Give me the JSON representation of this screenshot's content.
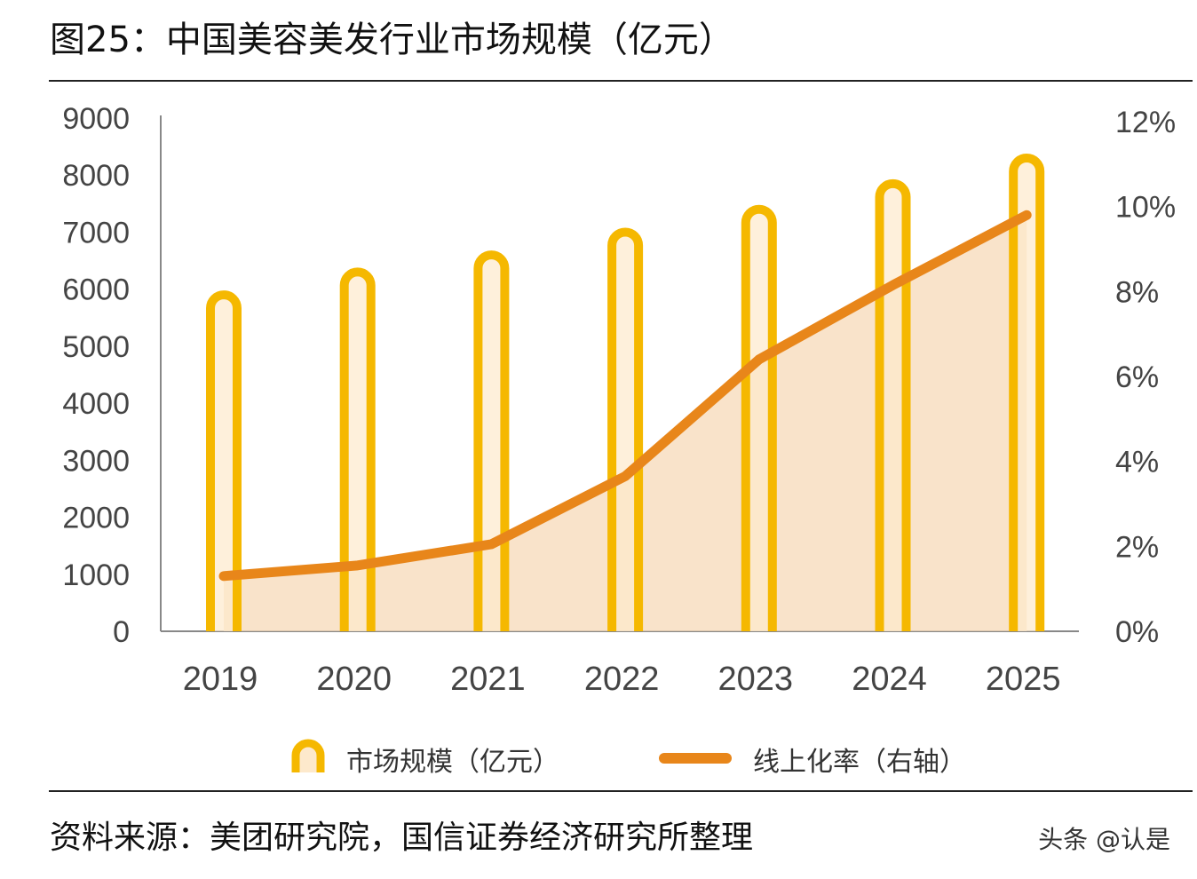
{
  "title": "图25：中国美容美发行业市场规模（亿元）",
  "source": "资料来源：美团研究院，国信证券经济研究所整理",
  "watermark": "头条 @认是",
  "colors": {
    "bar": "#f5b800",
    "bar_inner": "#fde9cc",
    "line": "#e8861a",
    "area": "#f7d9b8"
  },
  "chart_data": {
    "type": "bar+line",
    "categories": [
      "2019",
      "2020",
      "2021",
      "2022",
      "2023",
      "2024",
      "2025"
    ],
    "series": [
      {
        "name": "市场规模（亿元）",
        "type": "bar",
        "axis": "left",
        "values": [
          5900,
          6300,
          6600,
          7000,
          7400,
          7850,
          8300
        ]
      },
      {
        "name": "线上化率（右轴）",
        "type": "line-area",
        "axis": "right",
        "values": [
          1.3,
          1.55,
          2.05,
          3.65,
          6.4,
          8.15,
          9.8
        ]
      }
    ],
    "left_axis": {
      "range": [
        0,
        9000
      ],
      "ticks": [
        "0",
        "1000",
        "2000",
        "3000",
        "4000",
        "5000",
        "6000",
        "7000",
        "8000",
        "9000"
      ]
    },
    "right_axis": {
      "range": [
        0,
        12
      ],
      "ticks": [
        "0%",
        "2%",
        "4%",
        "6%",
        "8%",
        "10%",
        "12%"
      ]
    },
    "grid": false,
    "legend": {
      "placement": "bottom",
      "items": [
        "市场规模（亿元）",
        "线上化率（右轴）"
      ]
    }
  }
}
